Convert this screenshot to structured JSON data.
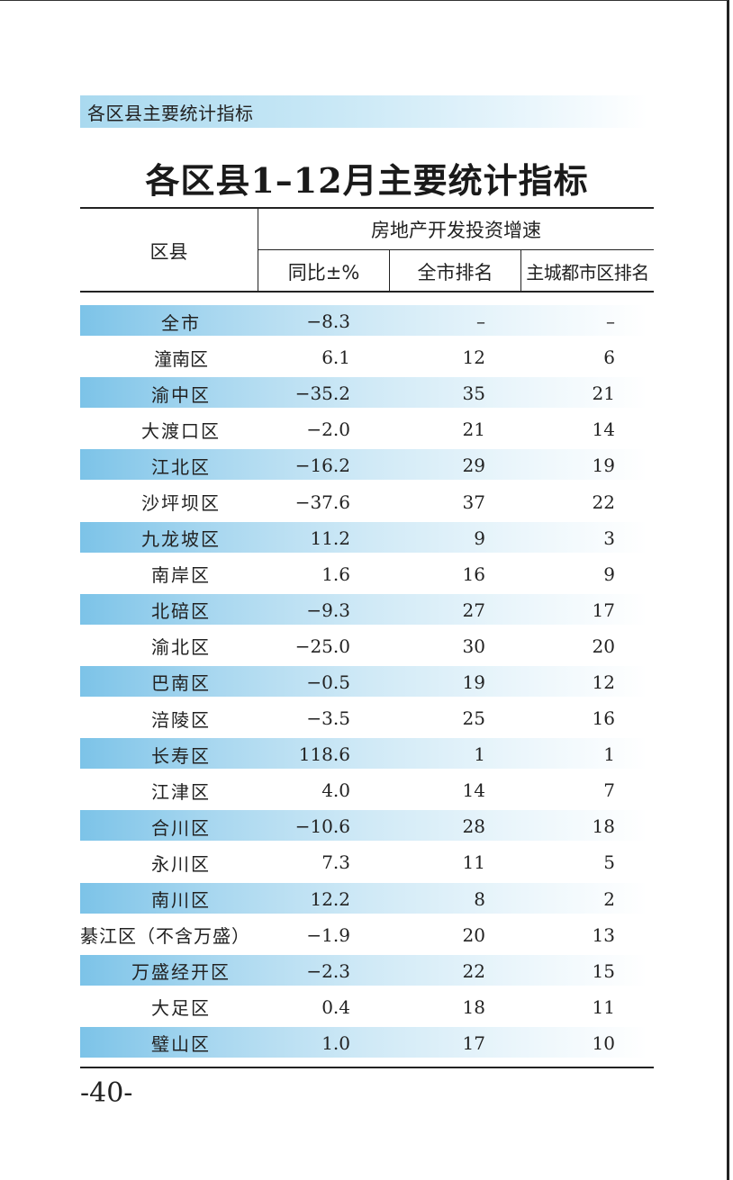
{
  "section_banner": "各区县主要统计指标",
  "title": "各区县1–12月主要统计指标",
  "header": {
    "region": "区县",
    "group": "房地产开发投资增速",
    "yoy": "同比±%",
    "city_rank": "全市排名",
    "main_city_rank": "主城都市区排名"
  },
  "rows": [
    {
      "region": "全市",
      "growth": "−8.3",
      "city_rank": "–",
      "main_city_rank": "–"
    },
    {
      "region": "潼南区",
      "growth": "6.1",
      "city_rank": "12",
      "main_city_rank": "6"
    },
    {
      "region": "渝中区",
      "growth": "−35.2",
      "city_rank": "35",
      "main_city_rank": "21"
    },
    {
      "region": "大渡口区",
      "growth": "−2.0",
      "city_rank": "21",
      "main_city_rank": "14"
    },
    {
      "region": "江北区",
      "growth": "−16.2",
      "city_rank": "29",
      "main_city_rank": "19"
    },
    {
      "region": "沙坪坝区",
      "growth": "−37.6",
      "city_rank": "37",
      "main_city_rank": "22"
    },
    {
      "region": "九龙坡区",
      "growth": "11.2",
      "city_rank": "9",
      "main_city_rank": "3"
    },
    {
      "region": "南岸区",
      "growth": "1.6",
      "city_rank": "16",
      "main_city_rank": "9"
    },
    {
      "region": "北碚区",
      "growth": "−9.3",
      "city_rank": "27",
      "main_city_rank": "17"
    },
    {
      "region": "渝北区",
      "growth": "−25.0",
      "city_rank": "30",
      "main_city_rank": "20"
    },
    {
      "region": "巴南区",
      "growth": "−0.5",
      "city_rank": "19",
      "main_city_rank": "12"
    },
    {
      "region": "涪陵区",
      "growth": "−3.5",
      "city_rank": "25",
      "main_city_rank": "16"
    },
    {
      "region": "长寿区",
      "growth": "118.6",
      "city_rank": "1",
      "main_city_rank": "1"
    },
    {
      "region": "江津区",
      "growth": "4.0",
      "city_rank": "14",
      "main_city_rank": "7"
    },
    {
      "region": "合川区",
      "growth": "−10.6",
      "city_rank": "28",
      "main_city_rank": "18"
    },
    {
      "region": "永川区",
      "growth": "7.3",
      "city_rank": "11",
      "main_city_rank": "5"
    },
    {
      "region": "南川区",
      "growth": "12.2",
      "city_rank": "8",
      "main_city_rank": "2"
    },
    {
      "region": "綦江区（不含万盛）",
      "growth": "−1.9",
      "city_rank": "20",
      "main_city_rank": "13"
    },
    {
      "region": "万盛经开区",
      "growth": "−2.3",
      "city_rank": "22",
      "main_city_rank": "15"
    },
    {
      "region": "大足区",
      "growth": "0.4",
      "city_rank": "18",
      "main_city_rank": "11"
    },
    {
      "region": "璧山区",
      "growth": "1.0",
      "city_rank": "17",
      "main_city_rank": "10"
    }
  ],
  "page_number": "-40-",
  "colors": {
    "banner_start": "#a9d9ef",
    "row_shade_start": "#7cc3e8",
    "rule": "#222222"
  }
}
